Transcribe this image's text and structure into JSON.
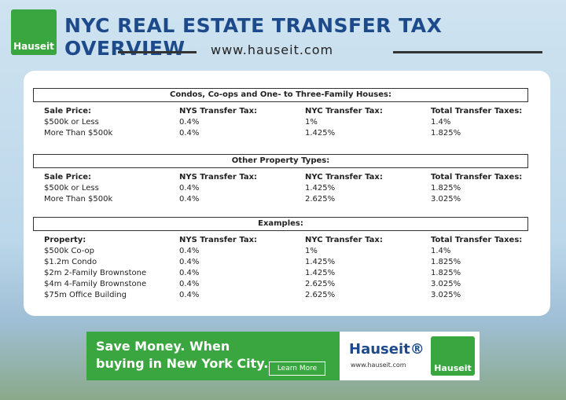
{
  "header": {
    "logo": "Hauseit",
    "title": "NYC REAL ESTATE TRANSFER TAX OVERVIEW",
    "url": "www.hauseit.com"
  },
  "sections": [
    {
      "title": "Condos, Co-ops and One- to Three-Family Houses:",
      "columns": [
        "Sale Price:",
        "NYS Transfer Tax:",
        "NYC Transfer Tax:",
        "Total Transfer Taxes:"
      ],
      "rows": [
        [
          "$500k or Less",
          "0.4%",
          "1%",
          "1.4%"
        ],
        [
          "More Than $500k",
          "0.4%",
          "1.425%",
          "1.825%"
        ]
      ]
    },
    {
      "title": "Other Property Types:",
      "columns": [
        "Sale Price:",
        "NYS Transfer Tax:",
        "NYC Transfer Tax:",
        "Total Transfer Taxes:"
      ],
      "rows": [
        [
          "$500k or Less",
          "0.4%",
          "1.425%",
          "1.825%"
        ],
        [
          "More Than $500k",
          "0.4%",
          "2.625%",
          "3.025%"
        ]
      ]
    },
    {
      "title": "Examples:",
      "columns": [
        "Property:",
        "NYS Transfer Tax:",
        "NYC Transfer Tax:",
        "Total Transfer Taxes:"
      ],
      "rows": [
        [
          "$500k Co-op",
          "0.4%",
          "1%",
          "1.4%"
        ],
        [
          "$1.2m Condo",
          "0.4%",
          "1.425%",
          "1.825%"
        ],
        [
          "$2m 2-Family Brownstone",
          "0.4%",
          "1.425%",
          "1.825%"
        ],
        [
          "$4m 4-Family Brownstone",
          "0.4%",
          "2.625%",
          "3.025%"
        ],
        [
          "$75m Office Building",
          "0.4%",
          "2.625%",
          "3.025%"
        ]
      ]
    }
  ],
  "banner": {
    "headline": "Save Money. When buying in New York City.",
    "button": "Learn More",
    "brand": "Hauseit®",
    "url": "www.hauseit.com",
    "logo": "Hauseit"
  }
}
